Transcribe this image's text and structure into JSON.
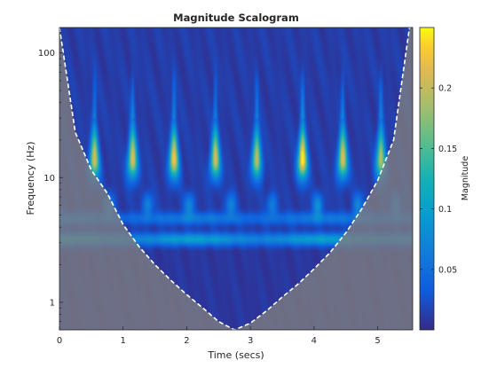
{
  "chart_data": {
    "type": "heatmap",
    "title": "Magnitude Scalogram",
    "xlabel": "Time (secs)",
    "ylabel": "Frequency (Hz)",
    "xlim": [
      0,
      5.55
    ],
    "ylim": [
      0.6,
      160
    ],
    "yscale": "log",
    "x_ticks": [
      0,
      1,
      2,
      3,
      4,
      5
    ],
    "y_ticks": [
      1,
      10,
      100
    ],
    "colorbar": {
      "label": "Magnitude",
      "range": [
        0,
        0.25
      ],
      "ticks": [
        0.05,
        0.1,
        0.15,
        0.2
      ],
      "colormap": "parula"
    },
    "cone_of_influence": {
      "x": [
        0,
        0.25,
        0.5,
        0.75,
        1.0,
        1.25,
        1.5,
        1.75,
        2.0,
        2.25,
        2.5,
        2.75,
        3.0,
        3.25,
        3.5,
        3.75,
        4.0,
        4.25,
        4.5,
        4.75,
        5.0,
        5.25,
        5.5
      ],
      "y": [
        160,
        23,
        11.5,
        7.5,
        4.2,
        2.8,
        2.0,
        1.5,
        1.15,
        0.9,
        0.7,
        0.6,
        0.68,
        0.85,
        1.1,
        1.4,
        1.85,
        2.5,
        3.6,
        5.6,
        9.5,
        20,
        160
      ],
      "outside_color": "#7f7f7f"
    },
    "components": [
      {
        "type": "pulse",
        "centers": [
          0.55,
          1.15,
          1.8,
          2.45,
          3.1,
          3.82,
          4.45,
          5.05
        ],
        "peak_freq": 14,
        "magnitude": [
          0.2,
          0.21,
          0.22,
          0.2,
          0.19,
          0.25,
          0.21,
          0.19
        ]
      },
      {
        "type": "tone",
        "freq": 3.2,
        "magnitude": 0.09
      },
      {
        "type": "tone",
        "freq": 4.7,
        "magnitude": 0.05
      }
    ],
    "colors": {
      "background": "#3b2e8f",
      "low": "#352a87",
      "high": "#f9fb0e"
    }
  }
}
